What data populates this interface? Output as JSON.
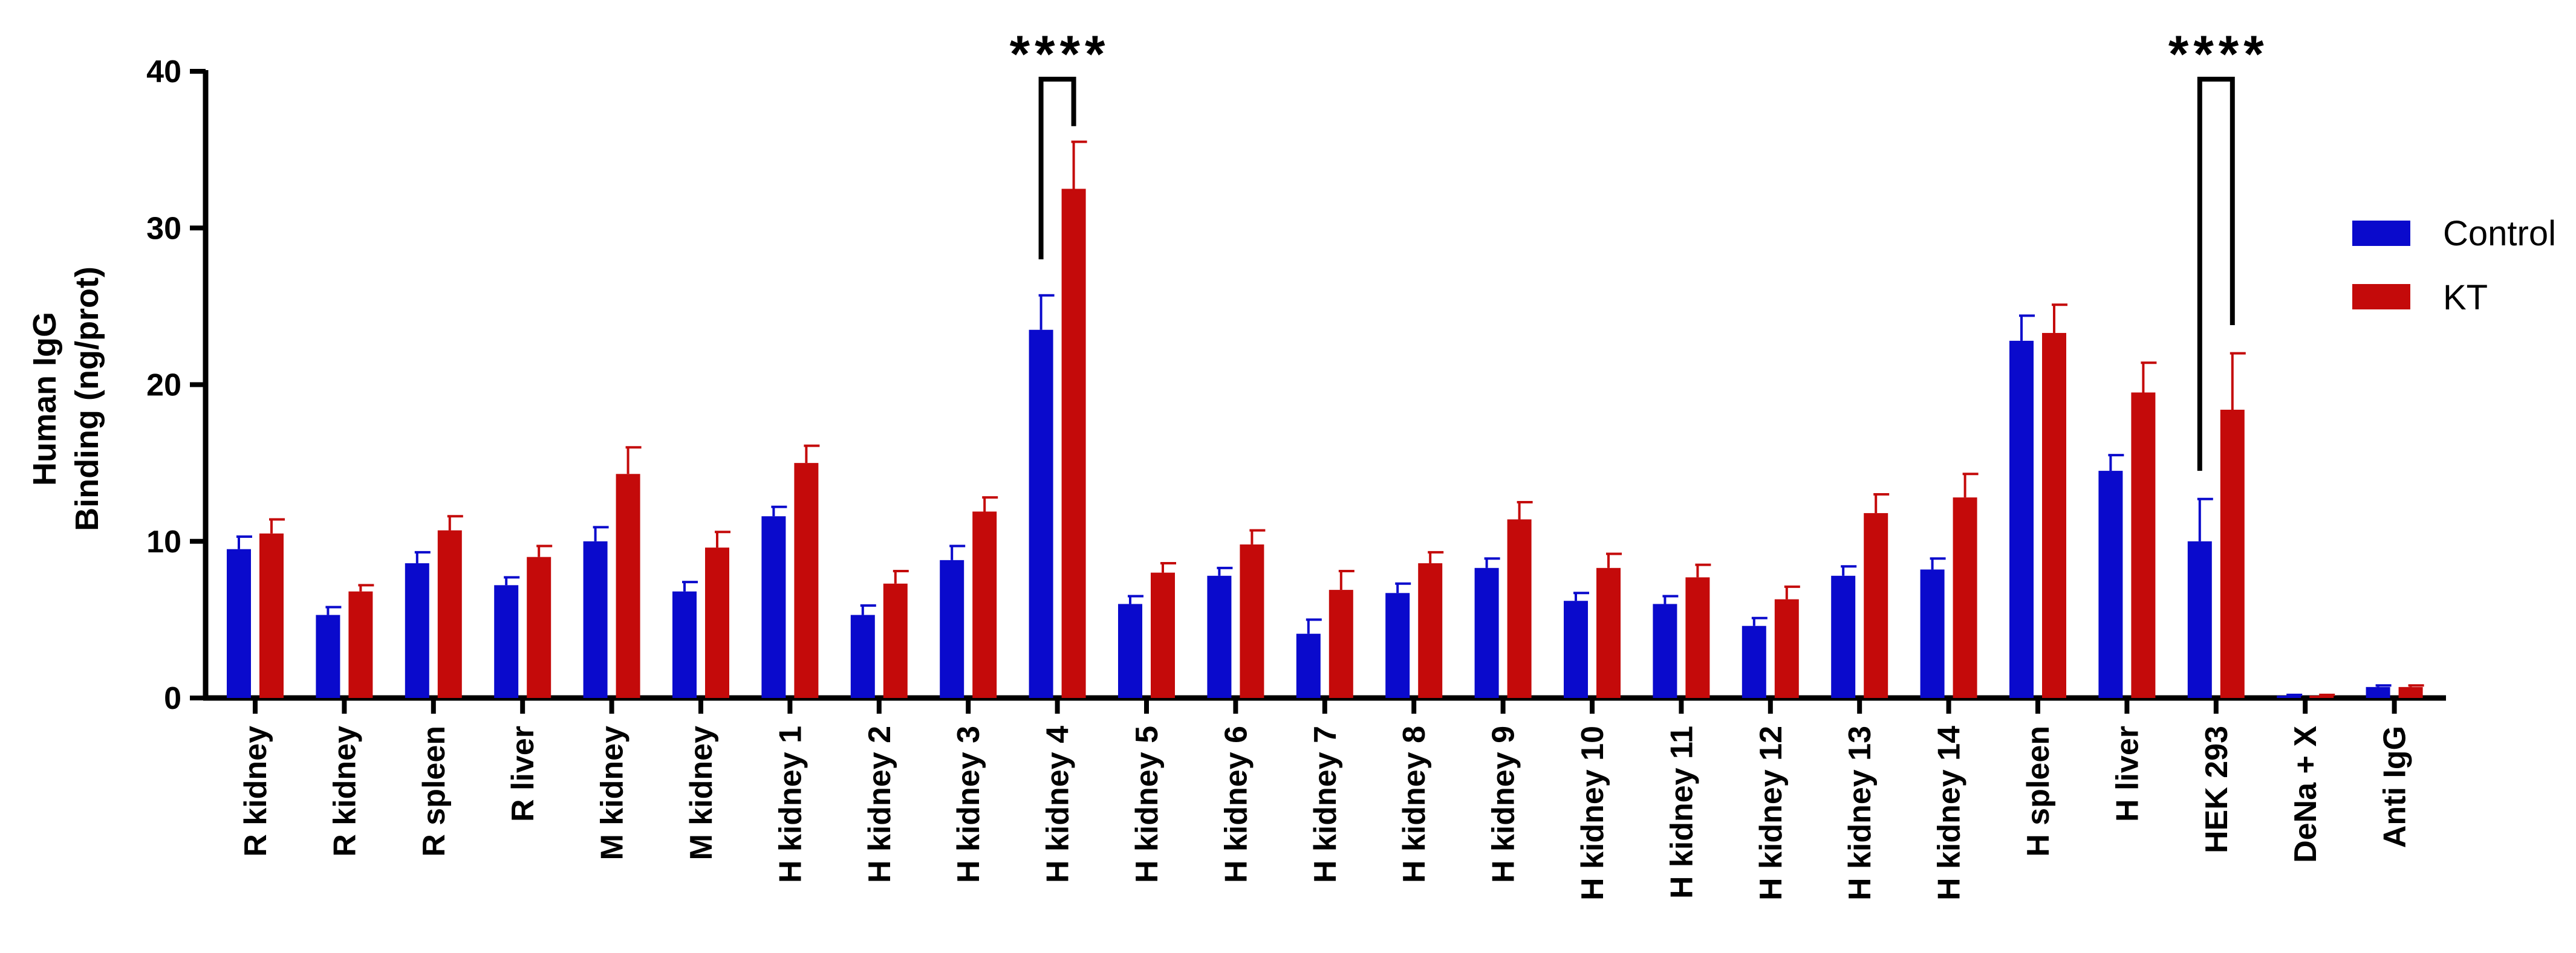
{
  "colors": {
    "control": "#0A0ACC",
    "kt": "#C40A0A",
    "axis": "#000000"
  },
  "chart_data": {
    "type": "bar",
    "ylabel_lines": [
      "Human IgG",
      "Binding (ng/prot)"
    ],
    "ylim": [
      0,
      40
    ],
    "yticks": [
      "0",
      "10",
      "20",
      "30",
      "40"
    ],
    "categories": [
      "R kidney",
      "R kidney",
      "R spleen",
      "R liver",
      "M kidney",
      "M kidney",
      "H kidney 1",
      "H kidney 2",
      "H kidney 3",
      "H kidney 4",
      "H kidney 5",
      "H kidney 6",
      "H kidney 7",
      "H kidney 8",
      "H kidney 9",
      "H kidney 10",
      "H kidney 11",
      "H kidney 12",
      "H kidney 13",
      "H kidney 14",
      "H spleen",
      "H liver",
      "HEK 293",
      "DeNa + X",
      "Anti IgG"
    ],
    "series": [
      {
        "name": "Control",
        "values": [
          9.5,
          5.3,
          8.6,
          7.2,
          10.0,
          6.8,
          11.6,
          5.3,
          8.8,
          23.5,
          6.0,
          7.8,
          4.1,
          6.7,
          8.3,
          6.2,
          6.0,
          4.6,
          7.8,
          8.2,
          22.8,
          14.5,
          10.0,
          0.15,
          0.7
        ],
        "errors": [
          0.8,
          0.5,
          0.7,
          0.5,
          0.9,
          0.6,
          0.6,
          0.6,
          0.9,
          2.2,
          0.5,
          0.5,
          0.9,
          0.6,
          0.6,
          0.5,
          0.5,
          0.5,
          0.6,
          0.7,
          1.6,
          1.0,
          2.7,
          0.05,
          0.1
        ]
      },
      {
        "name": "KT",
        "values": [
          10.5,
          6.8,
          10.7,
          9.0,
          14.3,
          9.6,
          15.0,
          7.3,
          11.9,
          32.5,
          8.0,
          9.8,
          6.9,
          8.6,
          11.4,
          8.3,
          7.7,
          6.3,
          11.8,
          12.8,
          23.3,
          19.5,
          18.4,
          0.15,
          0.7
        ],
        "errors": [
          0.9,
          0.4,
          0.9,
          0.7,
          1.7,
          1.0,
          1.1,
          0.8,
          0.9,
          3.0,
          0.6,
          0.9,
          1.2,
          0.7,
          1.1,
          0.9,
          0.8,
          0.8,
          1.2,
          1.5,
          1.8,
          1.9,
          3.6,
          0.05,
          0.1
        ]
      }
    ],
    "legend": {
      "position": "right",
      "entries": [
        "Control",
        "KT"
      ]
    },
    "annotations": [
      {
        "category_index": 9,
        "text": "****",
        "left_y": 28,
        "right_y": 36.5,
        "top_y": 39.5
      },
      {
        "category_index": 22,
        "text": "****",
        "left_y": 14.5,
        "right_y": 23.8,
        "top_y": 39.5
      }
    ]
  }
}
